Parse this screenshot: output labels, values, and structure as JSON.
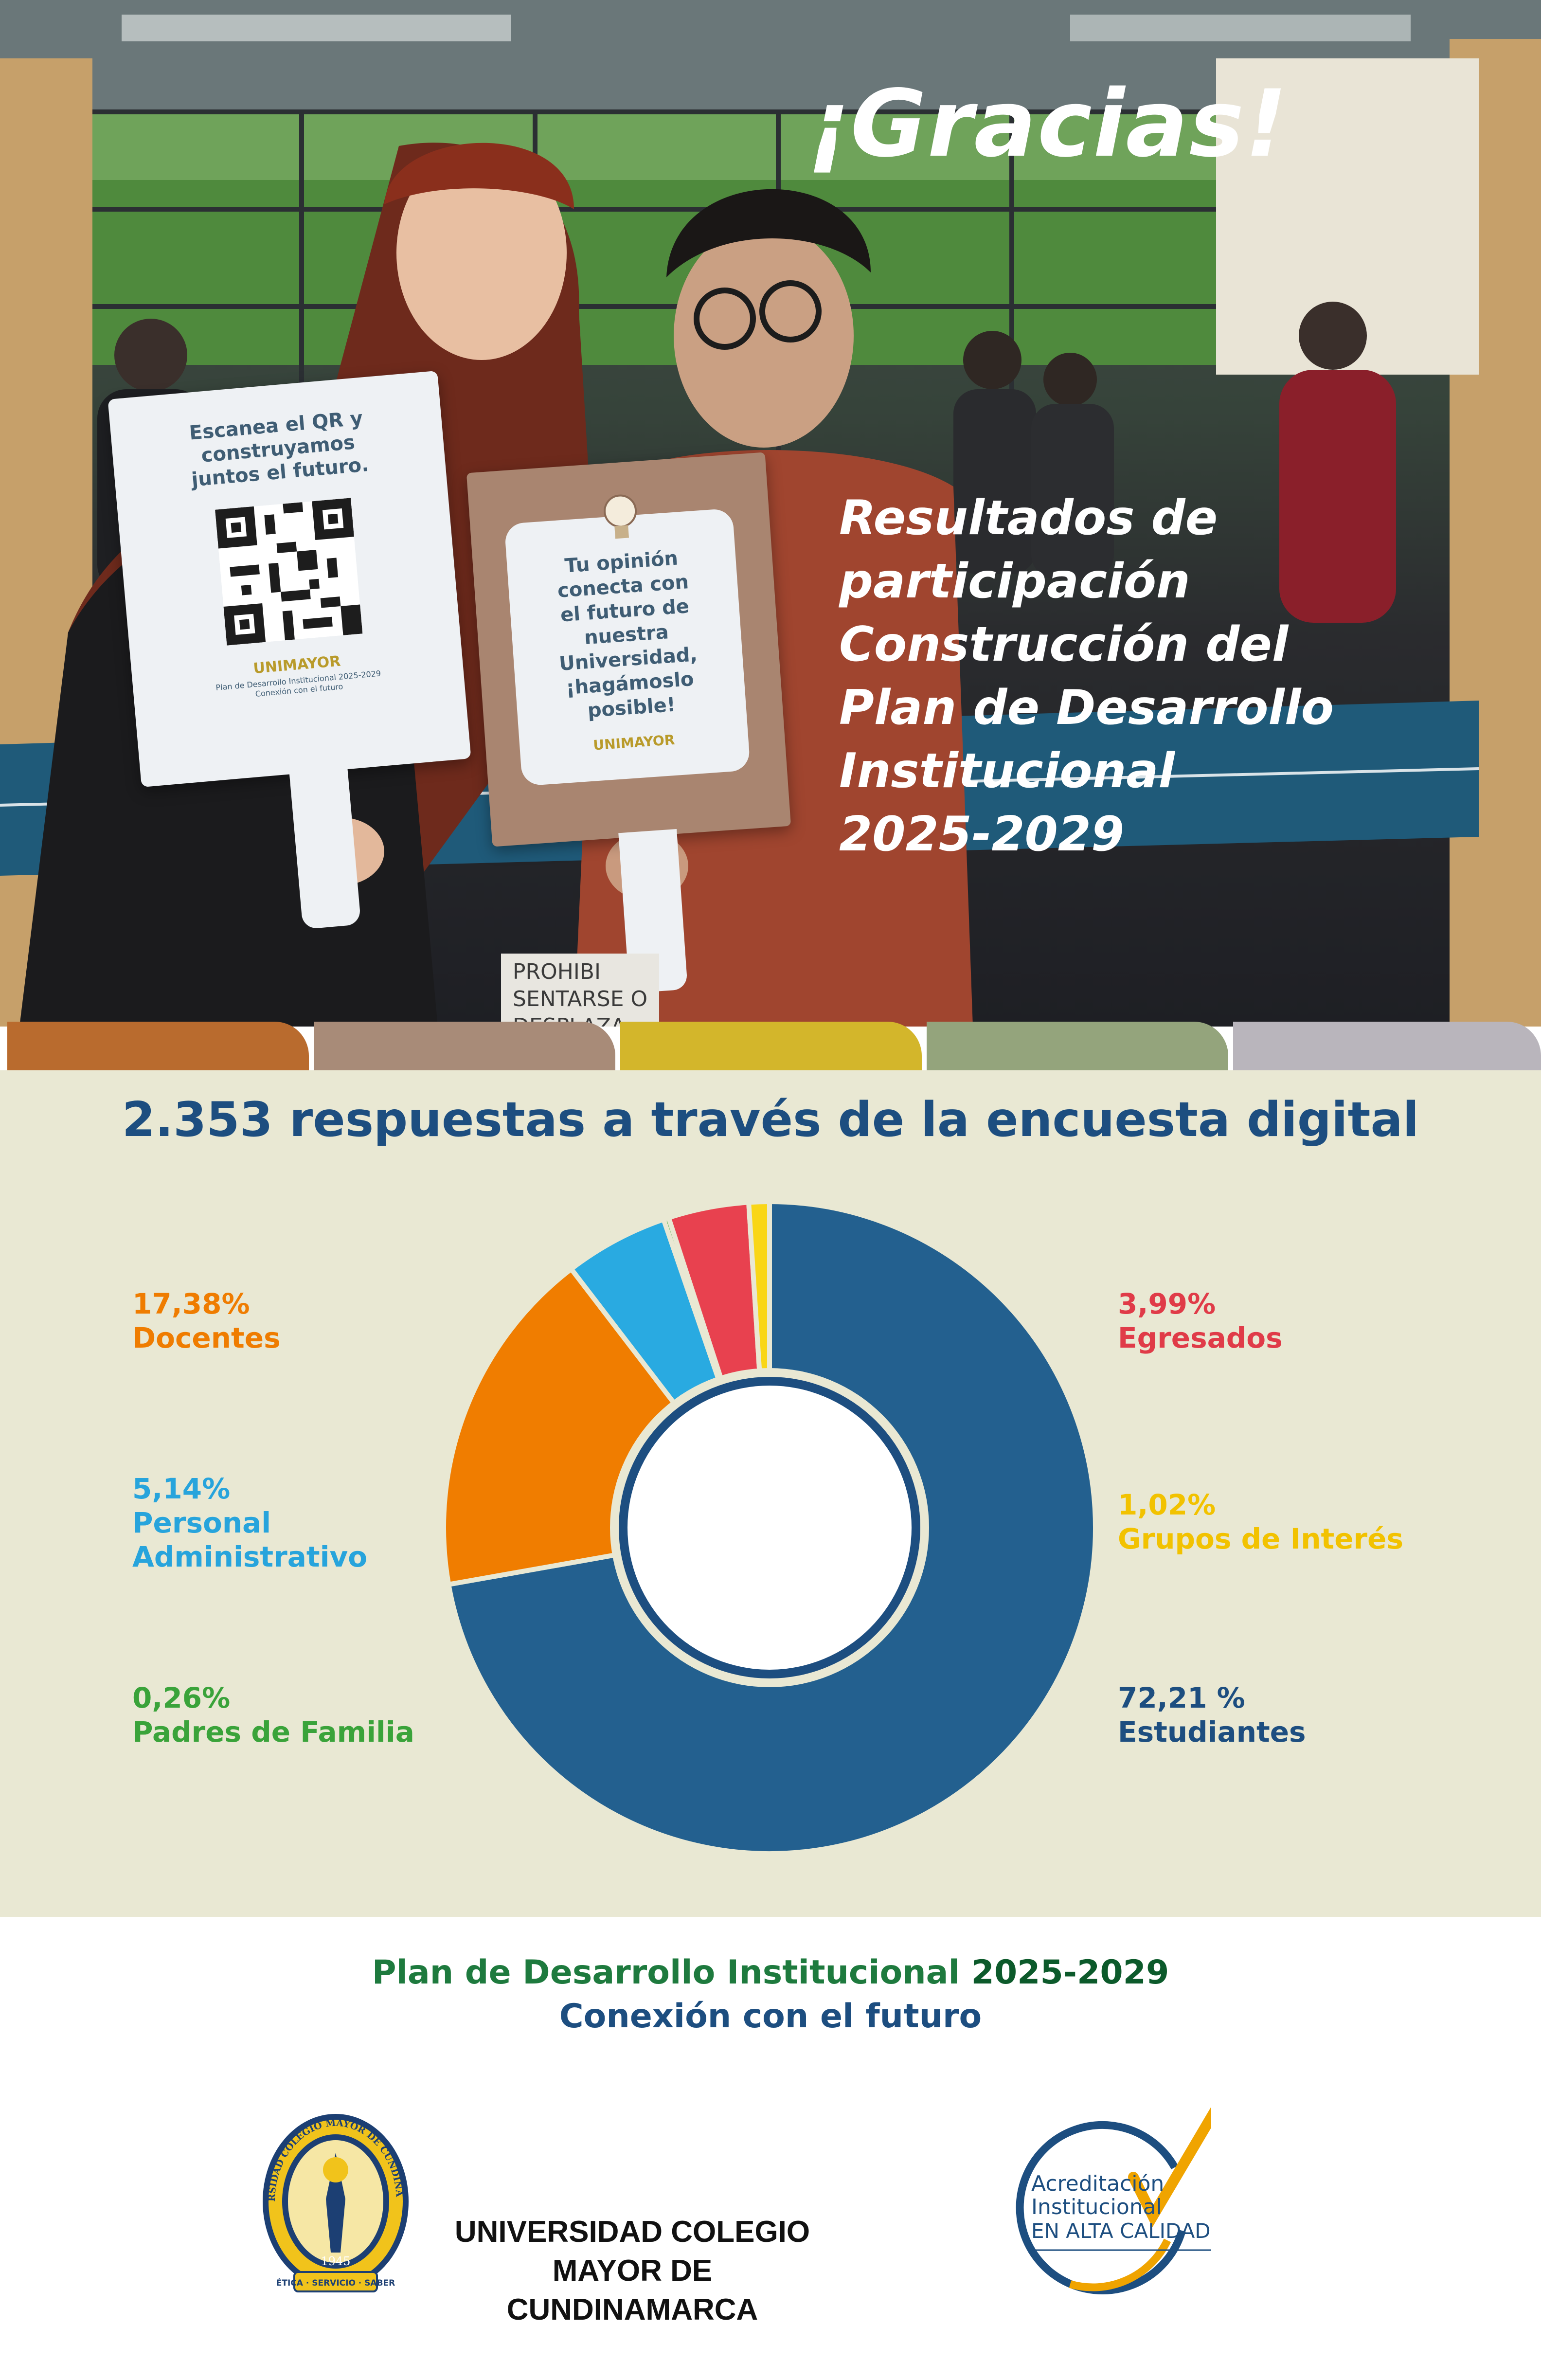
{
  "hero": {
    "title": "¡Gracias!",
    "subtitle_lines": [
      "Resultados de",
      "participación",
      "Construcción del",
      "Plan de Desarrollo",
      "Institucional",
      "2025-2029"
    ],
    "sign_left": {
      "lines": [
        "Escanea el QR y",
        "construyamos",
        "juntos el futuro."
      ],
      "brand": "UNIMAYOR",
      "fine_print": [
        "Plan de Desarrollo Institucional 2025-2029",
        "Conexión con el futuro"
      ]
    },
    "sign_right": {
      "lines": [
        "Tu opinión",
        "conecta con",
        "el futuro de",
        "nuestra",
        "Universidad,",
        "¡hagámoslo",
        "posible!"
      ],
      "brand": "UNIMAYOR"
    },
    "background_sign_lines": [
      "PROHIBI",
      "SENTARSE O",
      "DESPLAZA"
    ]
  },
  "tabs": [
    "#b96b2e",
    "#a88b78",
    "#d3b62b",
    "#94a47c",
    "#b9b5bc"
  ],
  "chart_data": {
    "type": "pie",
    "title": "2.353 respuestas a través de la encuesta digital",
    "slices": [
      {
        "name": "Estudiantes",
        "label": "72,21 %",
        "value": 72.21,
        "color": "#23608f",
        "label_color": "#1d4e80"
      },
      {
        "name": "Docentes",
        "label": "17,38%",
        "value": 17.38,
        "color": "#f07d00",
        "label_color": "#ef7c00"
      },
      {
        "name": "Personal Administrativo",
        "label": "5,14%",
        "value": 5.14,
        "color": "#29aae1",
        "label_color": "#27a4dc"
      },
      {
        "name": "Padres de Familia",
        "label": "0,26%",
        "value": 0.26,
        "color": "#3aaa35",
        "label_color": "#3aa33a"
      },
      {
        "name": "Egresados",
        "label": "3,99%",
        "value": 3.99,
        "color": "#e8414f",
        "label_color": "#e03b48"
      },
      {
        "name": "Grupos de Interés",
        "label": "1,02%",
        "value": 1.02,
        "color": "#f9d616",
        "label_color": "#f2c200"
      }
    ]
  },
  "footer": {
    "plan": "Plan de Desarrollo Institucional",
    "plan_years": "2025-2029",
    "motto": "Conexión con el futuro",
    "university_lines": [
      "UNIVERSIDAD COLEGIO",
      "MAYOR DE CUNDINAMARCA"
    ],
    "seal": {
      "ring_text": "UNIVERSIDAD COLEGIO MAYOR DE CUNDINAMARCA",
      "year": "1945",
      "motto": "ÉTICA · SERVICIO · SABER"
    },
    "accreditation_lines": [
      "Acreditación",
      "Institucional"
    ],
    "accreditation_level": "EN ALTA CALIDAD"
  }
}
